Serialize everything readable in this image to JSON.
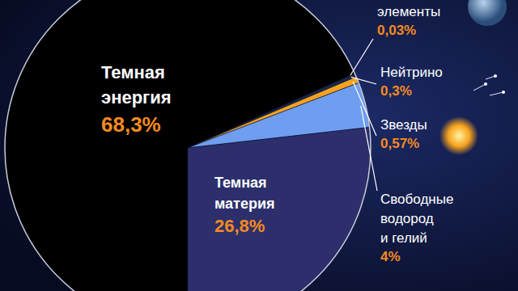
{
  "chart_data": {
    "type": "pie",
    "categories": [
      "Темная энергия",
      "элементы",
      "Нейтрино",
      "Звезды",
      "Свободные водород и гелий",
      "Темная материя"
    ],
    "values": [
      68.3,
      0.03,
      0.3,
      0.57,
      4,
      26.8
    ],
    "value_labels": [
      "68,3%",
      "0,03%",
      "0,3%",
      "0,57%",
      "4%",
      "26,8%"
    ],
    "colors": [
      "#000000",
      "#2f6e4c",
      "#1b2748",
      "#f5a21f",
      "#6f9ef0",
      "#2c2f6c"
    ],
    "data_labels": true
  }
}
